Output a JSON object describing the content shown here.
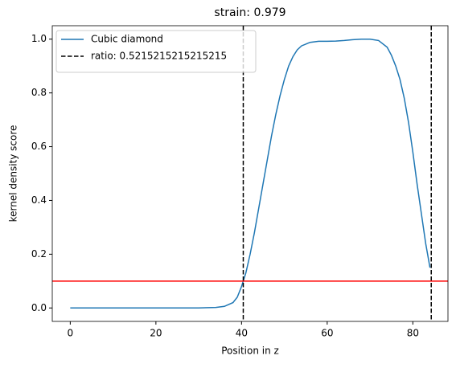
{
  "chart_data": {
    "type": "line",
    "title": "strain: 0.979",
    "xlabel": "Position in z",
    "ylabel": "kernel density score",
    "xlim": [
      -4.2,
      88.2
    ],
    "ylim": [
      -0.05,
      1.05
    ],
    "xticks": [
      0,
      20,
      40,
      60,
      80
    ],
    "yticks": [
      {
        "value": 0,
        "label": "0.0"
      },
      {
        "value": 0.2,
        "label": "0.2"
      },
      {
        "value": 0.4,
        "label": "0.4"
      },
      {
        "value": 0.6,
        "label": "0.6"
      },
      {
        "value": 0.8,
        "label": "0.8"
      },
      {
        "value": 1,
        "label": "1.0"
      }
    ],
    "grid": false,
    "legend": "upper left",
    "series": [
      {
        "name": "Cubic diamond",
        "color": "#1f77b4",
        "x": [
          0,
          10,
          20,
          30,
          34,
          36,
          38,
          39,
          40,
          41,
          42,
          43,
          44,
          45,
          46,
          47,
          48,
          49,
          50,
          51,
          52,
          53,
          54,
          56,
          58,
          60,
          62,
          64,
          66,
          68,
          70,
          72,
          74,
          75,
          76,
          77,
          78,
          79,
          80,
          81,
          82,
          83,
          84
        ],
        "values": [
          0,
          0,
          0,
          0,
          0.002,
          0.006,
          0.02,
          0.04,
          0.08,
          0.13,
          0.2,
          0.28,
          0.37,
          0.46,
          0.55,
          0.64,
          0.72,
          0.79,
          0.85,
          0.9,
          0.935,
          0.96,
          0.975,
          0.988,
          0.992,
          0.992,
          0.993,
          0.995,
          0.998,
          1.0,
          1.0,
          0.995,
          0.97,
          0.94,
          0.9,
          0.85,
          0.78,
          0.69,
          0.58,
          0.46,
          0.35,
          0.24,
          0.15
        ]
      }
    ],
    "vlines": {
      "name": "ratio: 0.5215215215215215",
      "color": "#000000",
      "values": [
        40.4,
        84.3
      ]
    },
    "hline": {
      "value": 0.1,
      "color": "#ff0000"
    }
  }
}
